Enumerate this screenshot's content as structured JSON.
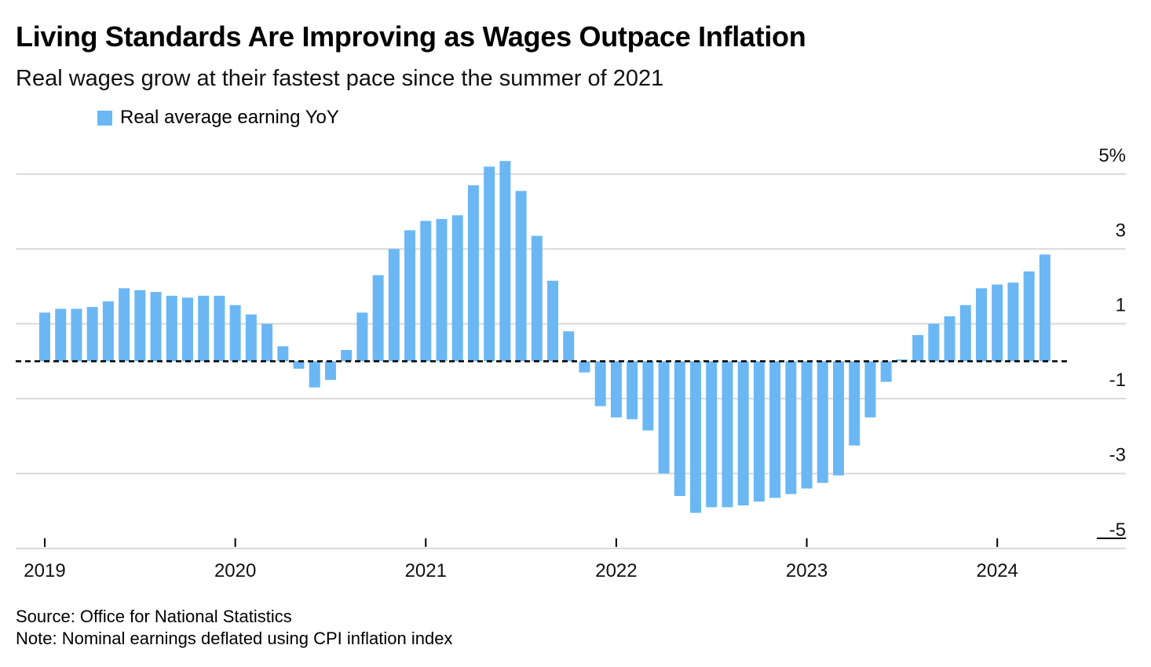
{
  "title": "Living Standards Are Improving as Wages Outpace Inflation",
  "subtitle": "Real wages grow at their fastest pace since the summer of 2021",
  "footer": {
    "source": "Source: Office for National Statistics",
    "note": "Note: Nominal earnings deflated using CPI inflation index"
  },
  "colors": {
    "bar": "#6bb7f4",
    "gridline": "#d9d9d9",
    "zero_line": "#000000"
  },
  "chart_data": {
    "type": "bar",
    "series": [
      {
        "name": "Real average earning YoY",
        "start_month": "2019-01",
        "values": [
          1.3,
          1.4,
          1.4,
          1.45,
          1.6,
          1.95,
          1.9,
          1.85,
          1.75,
          1.7,
          1.75,
          1.75,
          1.5,
          1.25,
          1.0,
          0.4,
          -0.2,
          -0.7,
          -0.5,
          0.3,
          1.3,
          2.3,
          3.0,
          3.5,
          3.75,
          3.8,
          3.9,
          4.7,
          5.2,
          5.35,
          4.55,
          3.35,
          2.15,
          0.8,
          -0.3,
          -1.2,
          -1.5,
          -1.55,
          -1.85,
          -3.0,
          -3.6,
          -4.05,
          -3.9,
          -3.9,
          -3.85,
          -3.75,
          -3.65,
          -3.55,
          -3.4,
          -3.25,
          -3.05,
          -2.25,
          -1.5,
          -0.55,
          0.05,
          0.7,
          1.0,
          1.2,
          1.5,
          1.95,
          2.05,
          2.1,
          2.4,
          2.85
        ]
      }
    ],
    "x_ticks": [
      "2019",
      "2020",
      "2021",
      "2022",
      "2023",
      "2024"
    ],
    "y_ticks": [
      "5%",
      "3",
      "1",
      "-1",
      "-3",
      "-5"
    ],
    "y_tick_values": [
      5,
      3,
      1,
      -1,
      -3,
      -5
    ],
    "ylim": [
      -5,
      5
    ],
    "zero_line": "dashed",
    "grid": true,
    "legend_position": "top-left",
    "y_axis_side": "right"
  }
}
